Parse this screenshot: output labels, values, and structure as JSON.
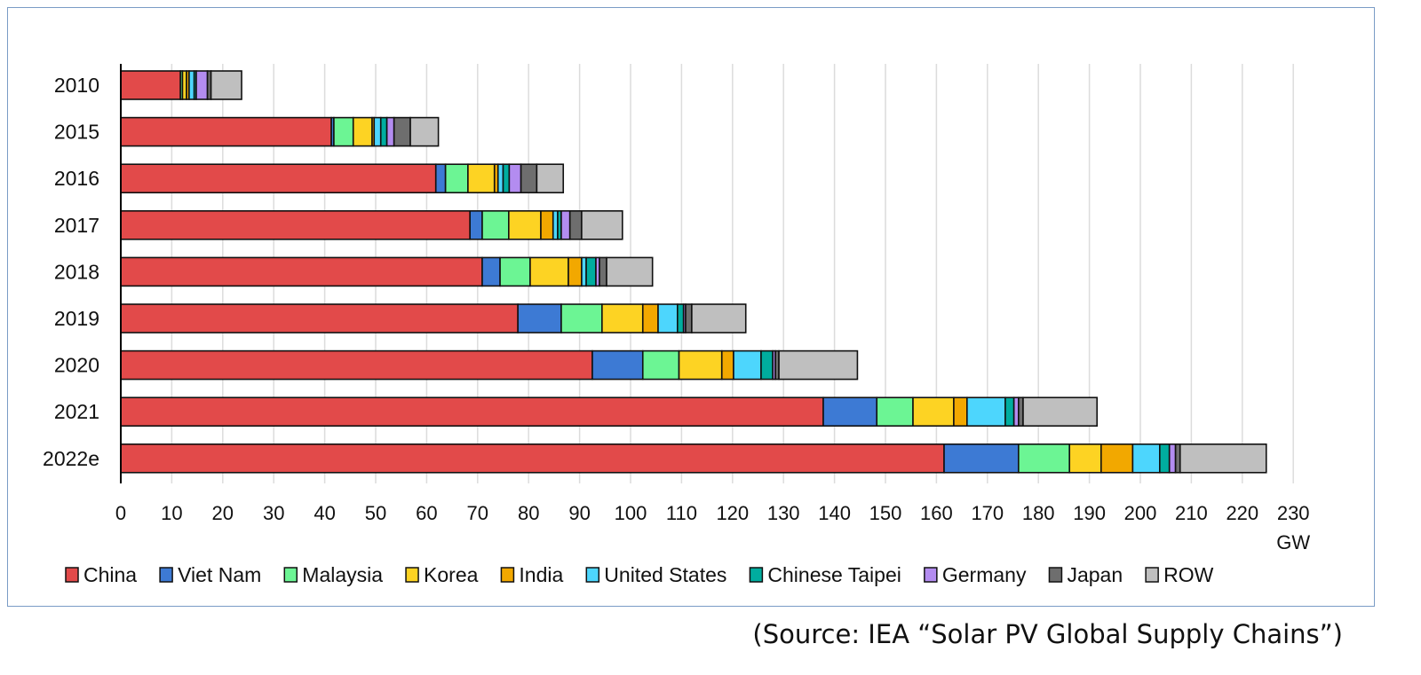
{
  "source_note": "(Source: IEA “Solar PV Global Supply Chains”)",
  "chart_data": {
    "type": "bar",
    "orientation": "horizontal",
    "stacked": true,
    "title": "",
    "xlabel": "GW",
    "ylabel": "",
    "xlim": [
      0,
      230
    ],
    "xticks": [
      0,
      10,
      20,
      30,
      40,
      50,
      60,
      70,
      80,
      90,
      100,
      110,
      120,
      130,
      140,
      150,
      160,
      170,
      180,
      190,
      200,
      210,
      220,
      230
    ],
    "grid": "vertical",
    "legend_position": "bottom",
    "categories": [
      "2010",
      "2015",
      "2016",
      "2017",
      "2018",
      "2019",
      "2020",
      "2021",
      "2022e"
    ],
    "series": [
      {
        "name": "China",
        "color": "#e24a4a",
        "values": [
          11.7,
          41.3,
          61.8,
          68.5,
          70.9,
          77.9,
          92.5,
          137.8,
          161.5
        ]
      },
      {
        "name": "Viet Nam",
        "color": "#3d7ad4",
        "values": [
          0,
          0.5,
          1.9,
          2.4,
          3.5,
          8.5,
          9.9,
          10.5,
          14.6
        ]
      },
      {
        "name": "Malaysia",
        "color": "#6cf594",
        "values": [
          0.4,
          3.8,
          4.4,
          5.2,
          5.9,
          8.0,
          7.1,
          7.1,
          10.0
        ]
      },
      {
        "name": "Korea",
        "color": "#fdd323",
        "values": [
          0.8,
          3.7,
          5.2,
          6.3,
          7.5,
          8.0,
          8.4,
          8.0,
          6.2
        ]
      },
      {
        "name": "India",
        "color": "#f2a800",
        "values": [
          0.5,
          0.4,
          0.7,
          2.4,
          2.6,
          3.0,
          2.3,
          2.6,
          6.2
        ]
      },
      {
        "name": "United States",
        "color": "#4dd6fd",
        "values": [
          1.0,
          1.3,
          1.0,
          0.9,
          0.9,
          3.8,
          5.4,
          7.5,
          5.3
        ]
      },
      {
        "name": "Chinese Taipei",
        "color": "#00ad9f",
        "values": [
          0.4,
          1.2,
          1.2,
          0.7,
          1.9,
          1.2,
          2.3,
          1.7,
          1.9
        ]
      },
      {
        "name": "Germany",
        "color": "#b38cf0",
        "values": [
          2.2,
          1.4,
          2.3,
          1.7,
          0.7,
          0.4,
          0.5,
          0.9,
          1.2
        ]
      },
      {
        "name": "Japan",
        "color": "#6e6e6e",
        "values": [
          0.7,
          3.2,
          3.1,
          2.3,
          1.4,
          1.2,
          0.7,
          0.9,
          0.9
        ]
      },
      {
        "name": "ROW",
        "color": "#bfbfbf",
        "values": [
          6.0,
          5.5,
          5.2,
          8.0,
          9.0,
          10.6,
          15.4,
          14.5,
          16.9
        ]
      }
    ]
  }
}
